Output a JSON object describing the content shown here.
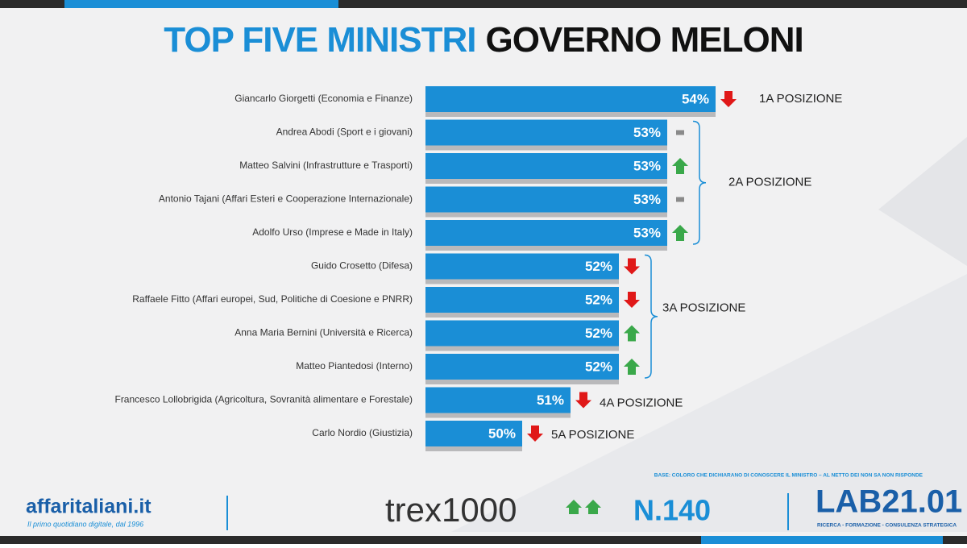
{
  "chart_data": {
    "type": "barh",
    "title": "TOP FIVE MINISTRI",
    "title_2": "GOVERNO MELONI",
    "categories": [
      "Giancarlo Giorgetti (Economia e Finanze)",
      "Andrea Abodi (Sport e i giovani)",
      "Matteo Salvini (Infrastrutture e Trasporti)",
      "Antonio Tajani (Affari Esteri e Cooperazione Internazionale)",
      "Adolfo Urso (Imprese e Made in Italy)",
      "Guido Crosetto (Difesa)",
      "Raffaele Fitto (Affari europei, Sud, Politiche di Coesione e PNRR)",
      "Anna Maria Bernini (Università e Ricerca)",
      "Matteo Piantedosi (Interno)",
      "Francesco Lollobrigida (Agricoltura, Sovranità alimentare e Forestale)",
      "Carlo Nordio (Giustizia)"
    ],
    "values": [
      54,
      53,
      53,
      53,
      53,
      52,
      52,
      52,
      52,
      51,
      50
    ],
    "value_labels": [
      "54%",
      "53%",
      "53%",
      "53%",
      "53%",
      "52%",
      "52%",
      "52%",
      "52%",
      "51%",
      "50%"
    ],
    "trends": [
      "down",
      "flat",
      "up",
      "flat",
      "up",
      "down",
      "down",
      "up",
      "up",
      "down",
      "down"
    ],
    "trend_colors": {
      "up": "#3aa84a",
      "down": "#e01818",
      "flat": "#8a8a8a"
    },
    "color": "#1a8ed6",
    "xlim": [
      48,
      55
    ],
    "annotations": [
      "1A POSIZIONE",
      "2A POSIZIONE",
      "3A POSIZIONE",
      "4A POSIZIONE",
      "5A POSIZIONE"
    ],
    "note": "BASE: COLORO CHE DICHIARANO DI CONOSCERE IL MINISTRO – AL NETTO DEI NON SA NON RISPONDE"
  },
  "footer": {
    "brand": "affaritaliani.it",
    "tagline": "Il primo quotidiano digitale, dal 1996",
    "trex": "trex1000",
    "number": "N.140",
    "lab": "LAB21.01",
    "lab_tagline": "RICERCA - FORMAZIONE - CONSULENZA STRATEGICA"
  }
}
